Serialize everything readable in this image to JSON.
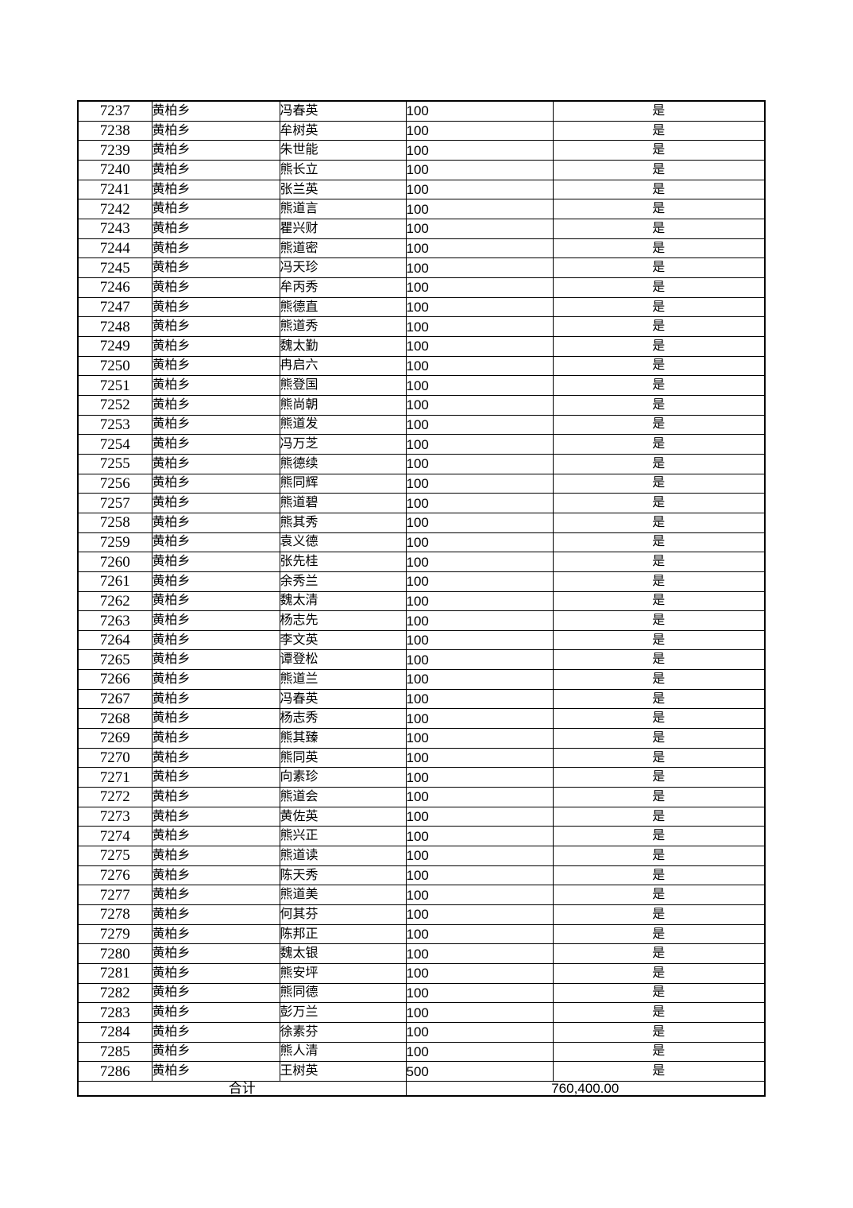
{
  "page": {
    "background_color": "#ffffff",
    "text_color": "#000000",
    "table_border_color": "#000000"
  },
  "table": {
    "rows": [
      [
        "7237",
        "黄柏乡",
        "冯春英",
        "100",
        "是"
      ],
      [
        "7238",
        "黄柏乡",
        "牟树英",
        "100",
        "是"
      ],
      [
        "7239",
        "黄柏乡",
        "朱世能",
        "100",
        "是"
      ],
      [
        "7240",
        "黄柏乡",
        "熊长立",
        "100",
        "是"
      ],
      [
        "7241",
        "黄柏乡",
        "张兰英",
        "100",
        "是"
      ],
      [
        "7242",
        "黄柏乡",
        "熊道言",
        "100",
        "是"
      ],
      [
        "7243",
        "黄柏乡",
        "瞿兴财",
        "100",
        "是"
      ],
      [
        "7244",
        "黄柏乡",
        "熊道密",
        "100",
        "是"
      ],
      [
        "7245",
        "黄柏乡",
        "冯天珍",
        "100",
        "是"
      ],
      [
        "7246",
        "黄柏乡",
        "牟丙秀",
        "100",
        "是"
      ],
      [
        "7247",
        "黄柏乡",
        "熊德直",
        "100",
        "是"
      ],
      [
        "7248",
        "黄柏乡",
        "熊道秀",
        "100",
        "是"
      ],
      [
        "7249",
        "黄柏乡",
        "魏太勤",
        "100",
        "是"
      ],
      [
        "7250",
        "黄柏乡",
        "冉启六",
        "100",
        "是"
      ],
      [
        "7251",
        "黄柏乡",
        "熊登国",
        "100",
        "是"
      ],
      [
        "7252",
        "黄柏乡",
        "熊尚朝",
        "100",
        "是"
      ],
      [
        "7253",
        "黄柏乡",
        "熊道发",
        "100",
        "是"
      ],
      [
        "7254",
        "黄柏乡",
        "冯万芝",
        "100",
        "是"
      ],
      [
        "7255",
        "黄柏乡",
        "熊德续",
        "100",
        "是"
      ],
      [
        "7256",
        "黄柏乡",
        "熊同辉",
        "100",
        "是"
      ],
      [
        "7257",
        "黄柏乡",
        "熊道碧",
        "100",
        "是"
      ],
      [
        "7258",
        "黄柏乡",
        "熊其秀",
        "100",
        "是"
      ],
      [
        "7259",
        "黄柏乡",
        "袁义德",
        "100",
        "是"
      ],
      [
        "7260",
        "黄柏乡",
        "张先桂",
        "100",
        "是"
      ],
      [
        "7261",
        "黄柏乡",
        "余秀兰",
        "100",
        "是"
      ],
      [
        "7262",
        "黄柏乡",
        "魏太清",
        "100",
        "是"
      ],
      [
        "7263",
        "黄柏乡",
        "杨志先",
        "100",
        "是"
      ],
      [
        "7264",
        "黄柏乡",
        "李文英",
        "100",
        "是"
      ],
      [
        "7265",
        "黄柏乡",
        "谭登松",
        "100",
        "是"
      ],
      [
        "7266",
        "黄柏乡",
        "熊道兰",
        "100",
        "是"
      ],
      [
        "7267",
        "黄柏乡",
        "冯春英",
        "100",
        "是"
      ],
      [
        "7268",
        "黄柏乡",
        "杨志秀",
        "100",
        "是"
      ],
      [
        "7269",
        "黄柏乡",
        "熊其臻",
        "100",
        "是"
      ],
      [
        "7270",
        "黄柏乡",
        "熊同英",
        "100",
        "是"
      ],
      [
        "7271",
        "黄柏乡",
        "向素珍",
        "100",
        "是"
      ],
      [
        "7272",
        "黄柏乡",
        "熊道会",
        "100",
        "是"
      ],
      [
        "7273",
        "黄柏乡",
        "黄佐英",
        "100",
        "是"
      ],
      [
        "7274",
        "黄柏乡",
        "熊兴正",
        "100",
        "是"
      ],
      [
        "7275",
        "黄柏乡",
        "熊道读",
        "100",
        "是"
      ],
      [
        "7276",
        "黄柏乡",
        "陈天秀",
        "100",
        "是"
      ],
      [
        "7277",
        "黄柏乡",
        "熊道美",
        "100",
        "是"
      ],
      [
        "7278",
        "黄柏乡",
        "何其芬",
        "100",
        "是"
      ],
      [
        "7279",
        "黄柏乡",
        "陈邦正",
        "100",
        "是"
      ],
      [
        "7280",
        "黄柏乡",
        "魏太银",
        "100",
        "是"
      ],
      [
        "7281",
        "黄柏乡",
        "熊安坪",
        "100",
        "是"
      ],
      [
        "7282",
        "黄柏乡",
        "熊同德",
        "100",
        "是"
      ],
      [
        "7283",
        "黄柏乡",
        "彭万兰",
        "100",
        "是"
      ],
      [
        "7284",
        "黄柏乡",
        "徐素芬",
        "100",
        "是"
      ],
      [
        "7285",
        "黄柏乡",
        "熊人清",
        "100",
        "是"
      ],
      [
        "7286",
        "黄柏乡",
        "王树英",
        "500",
        "是"
      ]
    ],
    "total_label": "合计",
    "total_value": "760,400.00"
  }
}
